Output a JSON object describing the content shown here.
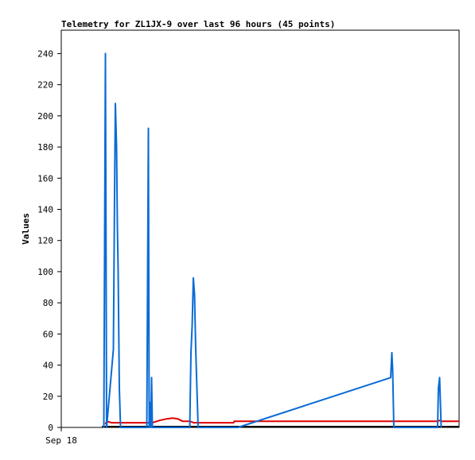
{
  "chart_data": {
    "type": "line",
    "title": "Telemetry for ZL1JX-9 over last 96 hours (45 points)",
    "xlabel": "",
    "ylabel": "Values",
    "x_tick_labels": [
      "Sep 18"
    ],
    "y_ticks": [
      0,
      20,
      40,
      60,
      80,
      100,
      120,
      140,
      160,
      180,
      200,
      220,
      240
    ],
    "ylim": [
      0,
      255
    ],
    "xlim": [
      0,
      100
    ],
    "grid": false,
    "legend": "none",
    "series": [
      {
        "color": "#0a6bd6",
        "points": [
          [
            10.7,
            0
          ],
          [
            10.9,
            120
          ],
          [
            11.1,
            240
          ],
          [
            11.4,
            0
          ],
          [
            13.1,
            50
          ],
          [
            13.4,
            150
          ],
          [
            13.6,
            208
          ],
          [
            13.9,
            180
          ],
          [
            14.1,
            130
          ],
          [
            14.3,
            100
          ],
          [
            14.6,
            25
          ],
          [
            14.9,
            0
          ],
          [
            21.5,
            0
          ],
          [
            21.7,
            95
          ],
          [
            21.9,
            192
          ],
          [
            22.1,
            0
          ],
          [
            22.3,
            16
          ],
          [
            22.5,
            0
          ],
          [
            22.7,
            32
          ],
          [
            22.9,
            0
          ],
          [
            32.3,
            0
          ],
          [
            32.6,
            48
          ],
          [
            32.9,
            65
          ],
          [
            33.2,
            96
          ],
          [
            33.5,
            85
          ],
          [
            33.8,
            50
          ],
          [
            34.1,
            25
          ],
          [
            34.4,
            0
          ],
          [
            44.4,
            0
          ],
          [
            82.8,
            32
          ],
          [
            83.1,
            48
          ],
          [
            83.3,
            37
          ],
          [
            83.6,
            0
          ],
          [
            94.6,
            0
          ],
          [
            94.8,
            25
          ],
          [
            95.1,
            32
          ],
          [
            95.3,
            16
          ],
          [
            95.5,
            0
          ]
        ]
      },
      {
        "color": "#e00000",
        "points": [
          [
            11.1,
            2
          ],
          [
            11.4,
            4
          ],
          [
            12.6,
            3
          ],
          [
            22.9,
            3
          ],
          [
            24.7,
            4.5
          ],
          [
            26.5,
            5.5
          ],
          [
            28.0,
            6
          ],
          [
            29.3,
            5.5
          ],
          [
            30.5,
            4
          ],
          [
            32.3,
            4
          ],
          [
            33.3,
            3
          ],
          [
            43.3,
            3
          ],
          [
            43.5,
            4
          ],
          [
            89,
            4
          ],
          [
            94.6,
            4
          ],
          [
            95.1,
            4.5
          ],
          [
            95.5,
            4
          ],
          [
            100,
            4
          ]
        ]
      },
      {
        "color": "#000000",
        "points": [
          [
            10.2,
            0.5
          ],
          [
            100,
            0.5
          ]
        ]
      }
    ]
  }
}
